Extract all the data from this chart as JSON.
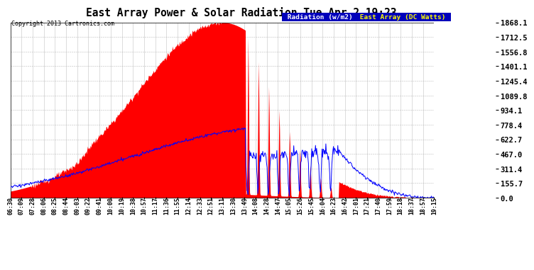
{
  "title": "East Array Power & Solar Radiation Tue Apr 2 19:23",
  "copyright": "Copyright 2013 Cartronics.com",
  "legend_radiation": "Radiation (w/m2)",
  "legend_east_array": "East Array (DC Watts)",
  "ymax": 1868.1,
  "yticks": [
    0.0,
    155.7,
    311.4,
    467.0,
    622.7,
    778.4,
    934.1,
    1089.8,
    1245.4,
    1401.1,
    1556.8,
    1712.5,
    1868.1
  ],
  "background_color": "#ffffff",
  "grid_color": "#aaaaaa",
  "fill_color": "#ff0000",
  "line_color": "#0000ff",
  "legend_bg": "#0000bb",
  "x_labels": [
    "06:30",
    "07:09",
    "07:28",
    "08:06",
    "08:25",
    "08:44",
    "09:03",
    "09:22",
    "09:41",
    "10:00",
    "10:19",
    "10:38",
    "10:57",
    "11:17",
    "11:36",
    "11:55",
    "12:14",
    "12:33",
    "12:51",
    "13:11",
    "13:30",
    "13:49",
    "14:08",
    "14:28",
    "14:47",
    "15:05",
    "15:26",
    "15:45",
    "16:04",
    "16:23",
    "16:42",
    "17:01",
    "17:21",
    "17:40",
    "17:59",
    "18:18",
    "18:37",
    "18:57",
    "19:15"
  ]
}
